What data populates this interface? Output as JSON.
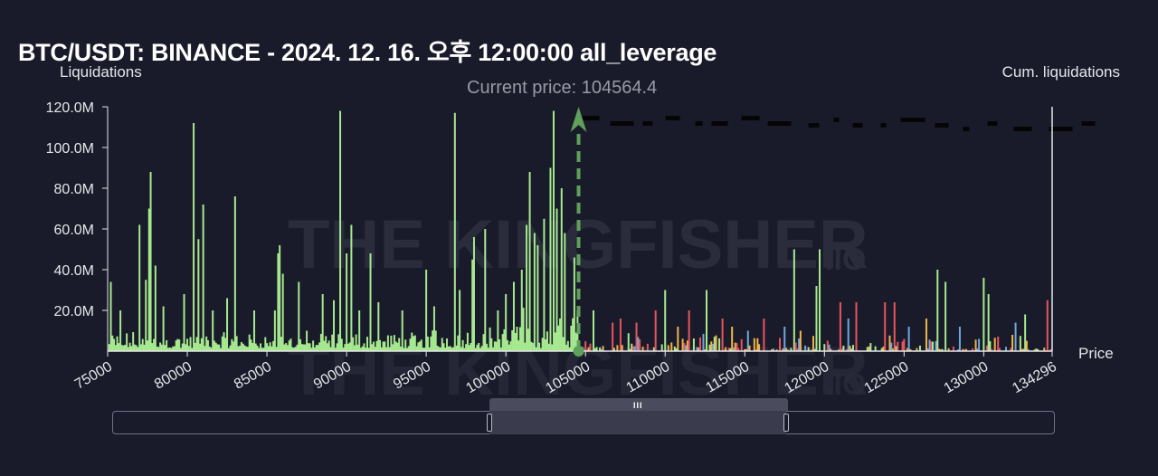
{
  "chart_data": {
    "type": "bar",
    "title": "BTC/USDT: BINANCE - 2024. 12. 16. 오후 12:00:00 all_leverage",
    "ylabel_left": "Liquidations",
    "ylabel_right": "Cum. liquidations",
    "xlabel": "Price",
    "current_price_label": "Current price: 104564.4",
    "current_price": 104564.4,
    "xlim": [
      75000,
      134296
    ],
    "ylim": [
      0,
      120000000
    ],
    "y_ticks": [
      "20.0M",
      "40.0M",
      "60.0M",
      "80.0M",
      "100.0M",
      "120.0M"
    ],
    "y_tick_values": [
      20000000,
      40000000,
      60000000,
      80000000,
      100000000,
      120000000
    ],
    "x_ticks": [
      "75000",
      "80000",
      "85000",
      "90000",
      "95000",
      "100000",
      "105000",
      "110000",
      "115000",
      "120000",
      "125000",
      "130000",
      "134296"
    ],
    "x_tick_values": [
      75000,
      80000,
      85000,
      90000,
      95000,
      100000,
      105000,
      110000,
      115000,
      120000,
      125000,
      130000,
      134296
    ],
    "colors": {
      "long": "#a6e98f",
      "short_red": "#e5555f",
      "short_orange": "#f0b34a",
      "short_blue": "#6fa8dc",
      "short_green": "#a6e98f",
      "current_price_line": "#5fa05a",
      "cum_line": "#050505"
    },
    "long_peaks": [
      {
        "x": 75200,
        "y": 34000000
      },
      {
        "x": 75800,
        "y": 20000000
      },
      {
        "x": 77000,
        "y": 62000000
      },
      {
        "x": 77400,
        "y": 35000000
      },
      {
        "x": 77600,
        "y": 70000000
      },
      {
        "x": 77700,
        "y": 88000000
      },
      {
        "x": 78000,
        "y": 42000000
      },
      {
        "x": 78500,
        "y": 22000000
      },
      {
        "x": 79800,
        "y": 28000000
      },
      {
        "x": 80400,
        "y": 112000000
      },
      {
        "x": 80700,
        "y": 55000000
      },
      {
        "x": 81000,
        "y": 72000000
      },
      {
        "x": 81600,
        "y": 20000000
      },
      {
        "x": 82500,
        "y": 26000000
      },
      {
        "x": 83000,
        "y": 76000000
      },
      {
        "x": 84200,
        "y": 20000000
      },
      {
        "x": 85500,
        "y": 20000000
      },
      {
        "x": 85700,
        "y": 48000000
      },
      {
        "x": 85800,
        "y": 52000000
      },
      {
        "x": 86000,
        "y": 38000000
      },
      {
        "x": 87000,
        "y": 34000000
      },
      {
        "x": 88500,
        "y": 28000000
      },
      {
        "x": 89200,
        "y": 25000000
      },
      {
        "x": 89600,
        "y": 118000000
      },
      {
        "x": 90000,
        "y": 48000000
      },
      {
        "x": 90300,
        "y": 62000000
      },
      {
        "x": 90800,
        "y": 20000000
      },
      {
        "x": 91500,
        "y": 48000000
      },
      {
        "x": 92000,
        "y": 24000000
      },
      {
        "x": 93500,
        "y": 20000000
      },
      {
        "x": 95000,
        "y": 40000000
      },
      {
        "x": 95500,
        "y": 22000000
      },
      {
        "x": 96800,
        "y": 117000000
      },
      {
        "x": 97100,
        "y": 30000000
      },
      {
        "x": 97900,
        "y": 45000000
      },
      {
        "x": 98000,
        "y": 56000000
      },
      {
        "x": 98700,
        "y": 60000000
      },
      {
        "x": 99500,
        "y": 20000000
      },
      {
        "x": 100000,
        "y": 28000000
      },
      {
        "x": 100500,
        "y": 34000000
      },
      {
        "x": 101000,
        "y": 40000000
      },
      {
        "x": 101300,
        "y": 62000000
      },
      {
        "x": 101500,
        "y": 88000000
      },
      {
        "x": 101800,
        "y": 58000000
      },
      {
        "x": 102000,
        "y": 52000000
      },
      {
        "x": 102400,
        "y": 65000000
      },
      {
        "x": 102800,
        "y": 90000000
      },
      {
        "x": 103000,
        "y": 118000000
      },
      {
        "x": 103200,
        "y": 70000000
      },
      {
        "x": 103500,
        "y": 80000000
      },
      {
        "x": 103700,
        "y": 58000000
      },
      {
        "x": 104300,
        "y": 46000000
      },
      {
        "x": 104500,
        "y": 20000000
      }
    ],
    "short_peaks": [
      {
        "x": 105500,
        "y": 20000000,
        "c": "short_green"
      },
      {
        "x": 106700,
        "y": 14000000,
        "c": "short_red"
      },
      {
        "x": 107200,
        "y": 16000000,
        "c": "short_red"
      },
      {
        "x": 108200,
        "y": 14000000,
        "c": "short_red"
      },
      {
        "x": 109400,
        "y": 20000000,
        "c": "short_red"
      },
      {
        "x": 110000,
        "y": 30000000,
        "c": "short_green"
      },
      {
        "x": 110800,
        "y": 12000000,
        "c": "short_orange"
      },
      {
        "x": 111500,
        "y": 20000000,
        "c": "short_red"
      },
      {
        "x": 112600,
        "y": 30000000,
        "c": "short_green"
      },
      {
        "x": 113600,
        "y": 16000000,
        "c": "short_red"
      },
      {
        "x": 114200,
        "y": 12000000,
        "c": "short_orange"
      },
      {
        "x": 115200,
        "y": 10000000,
        "c": "short_blue"
      },
      {
        "x": 116200,
        "y": 16000000,
        "c": "short_red"
      },
      {
        "x": 117500,
        "y": 12000000,
        "c": "short_blue"
      },
      {
        "x": 118100,
        "y": 50000000,
        "c": "short_green"
      },
      {
        "x": 118500,
        "y": 10000000,
        "c": "short_orange"
      },
      {
        "x": 119500,
        "y": 32000000,
        "c": "short_green"
      },
      {
        "x": 119700,
        "y": 50000000,
        "c": "short_green"
      },
      {
        "x": 121000,
        "y": 24000000,
        "c": "short_red"
      },
      {
        "x": 121500,
        "y": 16000000,
        "c": "short_blue"
      },
      {
        "x": 122000,
        "y": 24000000,
        "c": "short_red"
      },
      {
        "x": 123800,
        "y": 24000000,
        "c": "short_red"
      },
      {
        "x": 124400,
        "y": 24000000,
        "c": "short_red"
      },
      {
        "x": 125300,
        "y": 12000000,
        "c": "short_blue"
      },
      {
        "x": 126400,
        "y": 16000000,
        "c": "short_orange"
      },
      {
        "x": 127100,
        "y": 40000000,
        "c": "short_green"
      },
      {
        "x": 127600,
        "y": 34000000,
        "c": "short_green"
      },
      {
        "x": 128500,
        "y": 12000000,
        "c": "short_blue"
      },
      {
        "x": 130000,
        "y": 36000000,
        "c": "short_green"
      },
      {
        "x": 130300,
        "y": 28000000,
        "c": "short_green"
      },
      {
        "x": 132000,
        "y": 14000000,
        "c": "short_blue"
      },
      {
        "x": 132600,
        "y": 18000000,
        "c": "short_green"
      },
      {
        "x": 134000,
        "y": 25000000,
        "c": "short_red"
      }
    ]
  },
  "watermark": {
    "main": "THE KINGFISHER",
    "suffix": ".IO"
  },
  "slider": {
    "grip": "III"
  }
}
